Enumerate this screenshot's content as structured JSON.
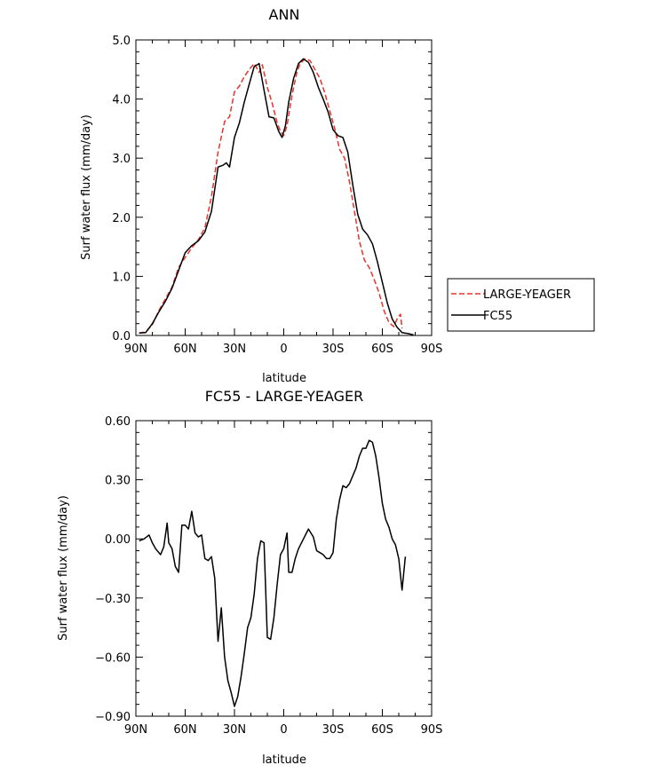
{
  "chart_data": [
    {
      "type": "line",
      "title": "ANN",
      "xlabel": "latitude",
      "ylabel": "Surf water flux (mm/day)",
      "xlim": [
        90,
        -90
      ],
      "ylim": [
        0.0,
        5.0
      ],
      "xticks": [
        {
          "value": 90,
          "label": "90N"
        },
        {
          "value": 60,
          "label": "60N"
        },
        {
          "value": 30,
          "label": "30N"
        },
        {
          "value": 0,
          "label": "0"
        },
        {
          "value": -30,
          "label": "30S"
        },
        {
          "value": -60,
          "label": "60S"
        },
        {
          "value": -90,
          "label": "90S"
        }
      ],
      "yticks": [
        {
          "value": 0.0,
          "label": "0.0"
        },
        {
          "value": 1.0,
          "label": "1.0"
        },
        {
          "value": 2.0,
          "label": "2.0"
        },
        {
          "value": 3.0,
          "label": "3.0"
        },
        {
          "value": 4.0,
          "label": "4.0"
        },
        {
          "value": 5.0,
          "label": "5.0"
        }
      ],
      "legend_position": "right",
      "series": [
        {
          "name": "LARGE-YEAGER",
          "color": "#e8332a",
          "dash": "dashed",
          "points": [
            [
              88,
              0.04
            ],
            [
              84,
              0.06
            ],
            [
              80,
              0.18
            ],
            [
              76,
              0.42
            ],
            [
              72,
              0.62
            ],
            [
              68,
              0.82
            ],
            [
              64,
              1.15
            ],
            [
              60,
              1.32
            ],
            [
              56,
              1.48
            ],
            [
              52,
              1.62
            ],
            [
              48,
              1.82
            ],
            [
              44,
              2.35
            ],
            [
              40,
              3.1
            ],
            [
              36,
              3.62
            ],
            [
              33,
              3.7
            ],
            [
              30,
              4.12
            ],
            [
              27,
              4.22
            ],
            [
              24,
              4.38
            ],
            [
              21,
              4.5
            ],
            [
              18,
              4.6
            ],
            [
              15,
              4.45
            ],
            [
              13,
              4.58
            ],
            [
              10,
              4.2
            ],
            [
              7,
              3.92
            ],
            [
              4,
              3.6
            ],
            [
              2,
              3.45
            ],
            [
              0,
              3.38
            ],
            [
              -2,
              3.55
            ],
            [
              -4,
              3.9
            ],
            [
              -6,
              4.2
            ],
            [
              -8,
              4.45
            ],
            [
              -10,
              4.6
            ],
            [
              -13,
              4.68
            ],
            [
              -16,
              4.65
            ],
            [
              -19,
              4.5
            ],
            [
              -22,
              4.35
            ],
            [
              -25,
              4.1
            ],
            [
              -28,
              3.8
            ],
            [
              -31,
              3.5
            ],
            [
              -34,
              3.15
            ],
            [
              -37,
              3.0
            ],
            [
              -40,
              2.6
            ],
            [
              -43,
              2.1
            ],
            [
              -46,
              1.6
            ],
            [
              -49,
              1.28
            ],
            [
              -52,
              1.15
            ],
            [
              -55,
              0.95
            ],
            [
              -58,
              0.72
            ],
            [
              -61,
              0.42
            ],
            [
              -64,
              0.22
            ],
            [
              -67,
              0.15
            ],
            [
              -69,
              0.28
            ],
            [
              -71,
              0.36
            ],
            [
              -72,
              0.12
            ]
          ]
        },
        {
          "name": "FC55",
          "color": "#000000",
          "dash": "solid",
          "points": [
            [
              88,
              0.04
            ],
            [
              84,
              0.05
            ],
            [
              80,
              0.2
            ],
            [
              76,
              0.4
            ],
            [
              72,
              0.58
            ],
            [
              68,
              0.8
            ],
            [
              64,
              1.1
            ],
            [
              60,
              1.4
            ],
            [
              56,
              1.52
            ],
            [
              52,
              1.6
            ],
            [
              48,
              1.75
            ],
            [
              44,
              2.1
            ],
            [
              40,
              2.85
            ],
            [
              37,
              2.88
            ],
            [
              35,
              2.92
            ],
            [
              33,
              2.85
            ],
            [
              30,
              3.35
            ],
            [
              27,
              3.6
            ],
            [
              24,
              3.95
            ],
            [
              21,
              4.25
            ],
            [
              18,
              4.55
            ],
            [
              15,
              4.6
            ],
            [
              12,
              4.15
            ],
            [
              9,
              3.7
            ],
            [
              6,
              3.68
            ],
            [
              3,
              3.45
            ],
            [
              1,
              3.35
            ],
            [
              -1,
              3.55
            ],
            [
              -3,
              3.95
            ],
            [
              -6,
              4.35
            ],
            [
              -9,
              4.6
            ],
            [
              -12,
              4.68
            ],
            [
              -15,
              4.62
            ],
            [
              -18,
              4.45
            ],
            [
              -21,
              4.2
            ],
            [
              -24,
              4.0
            ],
            [
              -27,
              3.78
            ],
            [
              -30,
              3.48
            ],
            [
              -33,
              3.38
            ],
            [
              -36,
              3.35
            ],
            [
              -39,
              3.1
            ],
            [
              -42,
              2.55
            ],
            [
              -45,
              2.05
            ],
            [
              -48,
              1.8
            ],
            [
              -51,
              1.7
            ],
            [
              -54,
              1.55
            ],
            [
              -57,
              1.25
            ],
            [
              -60,
              0.9
            ],
            [
              -63,
              0.55
            ],
            [
              -66,
              0.28
            ],
            [
              -69,
              0.14
            ],
            [
              -72,
              0.05
            ],
            [
              -76,
              0.03
            ],
            [
              -79,
              0.01
            ]
          ]
        }
      ]
    },
    {
      "type": "line",
      "title": "FC55 - LARGE-YEAGER",
      "xlabel": "latitude",
      "ylabel": "Surf water flux (mm/day)",
      "xlim": [
        90,
        -90
      ],
      "ylim": [
        -0.9,
        0.6
      ],
      "xticks": [
        {
          "value": 90,
          "label": "90N"
        },
        {
          "value": 60,
          "label": "60N"
        },
        {
          "value": 30,
          "label": "30N"
        },
        {
          "value": 0,
          "label": "0"
        },
        {
          "value": -30,
          "label": "30S"
        },
        {
          "value": -60,
          "label": "60S"
        },
        {
          "value": -90,
          "label": "90S"
        }
      ],
      "yticks": [
        {
          "value": -0.9,
          "label": "−0.90"
        },
        {
          "value": -0.6,
          "label": "−0.60"
        },
        {
          "value": -0.3,
          "label": "−0.30"
        },
        {
          "value": 0.0,
          "label": "0.00"
        },
        {
          "value": 0.3,
          "label": "0.30"
        },
        {
          "value": 0.6,
          "label": "0.60"
        }
      ],
      "series": [
        {
          "name": "",
          "color": "#000000",
          "dash": "solid",
          "points": [
            [
              88,
              -0.01
            ],
            [
              85,
              0.0
            ],
            [
              82,
              0.02
            ],
            [
              80,
              -0.02
            ],
            [
              78,
              -0.05
            ],
            [
              75,
              -0.08
            ],
            [
              73,
              -0.04
            ],
            [
              71,
              0.08
            ],
            [
              70,
              -0.02
            ],
            [
              68,
              -0.05
            ],
            [
              66,
              -0.14
            ],
            [
              64,
              -0.17
            ],
            [
              62,
              0.07
            ],
            [
              60,
              0.07
            ],
            [
              58,
              0.05
            ],
            [
              56,
              0.14
            ],
            [
              54,
              0.03
            ],
            [
              52,
              0.01
            ],
            [
              50,
              0.02
            ],
            [
              48,
              -0.1
            ],
            [
              46,
              -0.11
            ],
            [
              44,
              -0.09
            ],
            [
              42,
              -0.2
            ],
            [
              40,
              -0.52
            ],
            [
              38,
              -0.35
            ],
            [
              36,
              -0.6
            ],
            [
              34,
              -0.72
            ],
            [
              32,
              -0.78
            ],
            [
              30,
              -0.85
            ],
            [
              28,
              -0.8
            ],
            [
              26,
              -0.7
            ],
            [
              24,
              -0.58
            ],
            [
              22,
              -0.45
            ],
            [
              20,
              -0.4
            ],
            [
              18,
              -0.28
            ],
            [
              16,
              -0.1
            ],
            [
              14,
              -0.01
            ],
            [
              12,
              -0.02
            ],
            [
              10,
              -0.5
            ],
            [
              8,
              -0.51
            ],
            [
              6,
              -0.4
            ],
            [
              4,
              -0.23
            ],
            [
              2,
              -0.08
            ],
            [
              0,
              -0.05
            ],
            [
              -2,
              0.03
            ],
            [
              -3,
              -0.17
            ],
            [
              -5,
              -0.17
            ],
            [
              -7,
              -0.1
            ],
            [
              -9,
              -0.05
            ],
            [
              -12,
              0.0
            ],
            [
              -15,
              0.05
            ],
            [
              -18,
              0.01
            ],
            [
              -20,
              -0.06
            ],
            [
              -22,
              -0.07
            ],
            [
              -24,
              -0.08
            ],
            [
              -26,
              -0.1
            ],
            [
              -28,
              -0.1
            ],
            [
              -30,
              -0.07
            ],
            [
              -32,
              0.1
            ],
            [
              -34,
              0.2
            ],
            [
              -36,
              0.27
            ],
            [
              -38,
              0.26
            ],
            [
              -40,
              0.28
            ],
            [
              -42,
              0.32
            ],
            [
              -44,
              0.36
            ],
            [
              -46,
              0.42
            ],
            [
              -48,
              0.46
            ],
            [
              -50,
              0.46
            ],
            [
              -52,
              0.5
            ],
            [
              -54,
              0.49
            ],
            [
              -56,
              0.42
            ],
            [
              -58,
              0.31
            ],
            [
              -60,
              0.18
            ],
            [
              -62,
              0.1
            ],
            [
              -64,
              0.06
            ],
            [
              -66,
              0.0
            ],
            [
              -68,
              -0.03
            ],
            [
              -70,
              -0.1
            ],
            [
              -72,
              -0.26
            ],
            [
              -74,
              -0.09
            ]
          ]
        }
      ]
    }
  ]
}
